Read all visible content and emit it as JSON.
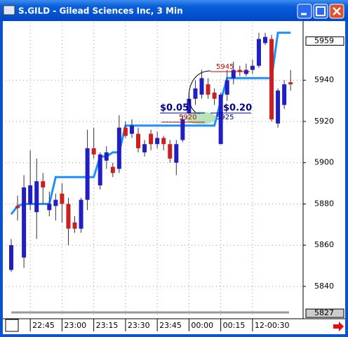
{
  "window_title": "S.GILD - Gilead Sciences Inc, 3 Min",
  "chart_data": {
    "type": "candlestick",
    "categories": [
      null,
      null,
      null,
      "22:45",
      null,
      null,
      null,
      null,
      "23:00",
      null,
      null,
      null,
      null,
      "23:15",
      null,
      null,
      null,
      null,
      "23:30",
      null,
      null,
      null,
      null,
      "23:45",
      null,
      null,
      null,
      null,
      "00:00",
      null,
      null,
      null,
      null,
      "00:15",
      null,
      null,
      null,
      null,
      "12-00:30",
      null,
      null,
      null,
      null,
      null,
      null
    ],
    "open": [
      5848,
      5879,
      5854,
      5880,
      5876,
      5891,
      5877,
      5879,
      5885,
      5880,
      5871,
      5868,
      5882,
      5907,
      5889,
      5901,
      5898,
      5897,
      5917,
      5914,
      5914,
      5905,
      5914,
      5909,
      5912,
      5909,
      5900,
      5911,
      5924,
      5931,
      5933,
      5938,
      5934,
      5909,
      5933,
      5941,
      5945,
      5943,
      5945,
      5947,
      5958,
      5960,
      5919,
      5928,
      5939
    ],
    "high": [
      5863,
      5884,
      5894,
      5906,
      5902,
      5895,
      5886,
      5885,
      5890,
      5883,
      5874,
      5883,
      5916,
      5917,
      5905,
      5908,
      5900,
      5923,
      5920,
      5921,
      5917,
      5911,
      5916,
      5915,
      5913,
      5911,
      5911,
      5923,
      5934,
      5940,
      5945,
      5941,
      5936,
      5934,
      5945,
      5949,
      5947,
      5948,
      5950,
      5963,
      5963,
      5962,
      5936,
      5940,
      5945
    ],
    "low": [
      5847,
      5872,
      5849,
      5877,
      5863,
      5880,
      5874,
      5872,
      5871,
      5860,
      5866,
      5866,
      5877,
      5902,
      5887,
      5897,
      5893,
      5895,
      5912,
      5912,
      5905,
      5903,
      5906,
      5907,
      5906,
      5900,
      5894,
      5910,
      5923,
      5928,
      5931,
      5931,
      5928,
      5909,
      5930,
      5938,
      5942,
      5942,
      5943,
      5946,
      5957,
      5920,
      5917,
      5926,
      5935
    ],
    "close": [
      5860,
      5878,
      5888,
      5889,
      5891,
      5888,
      5880,
      5882,
      5880,
      5868,
      5868,
      5882,
      5907,
      5904,
      5904,
      5905,
      5895,
      5917,
      5913,
      5918,
      5907,
      5909,
      5909,
      5912,
      5909,
      5902,
      5909,
      5921,
      5931,
      5936,
      5941,
      5933,
      5931,
      5933,
      5940,
      5945,
      5944,
      5945,
      5947,
      5960,
      5961,
      5921,
      5935,
      5938,
      5938
    ],
    "up_color": "#1f1fc4",
    "down_color": "#cc1f1f",
    "step_line": {
      "color": "#1e8fff",
      "values": [
        5875,
        5879,
        5880,
        5880,
        5880,
        5880,
        5880,
        5893,
        5893,
        5893,
        5893,
        5893,
        5893,
        5893,
        5903,
        5903,
        5905,
        5905,
        5918,
        5918,
        5918,
        5918,
        5918,
        5918,
        5918,
        5918,
        5918,
        5918,
        5918,
        5918,
        5918,
        5918,
        5918,
        5930,
        5941,
        5941,
        5941,
        5941,
        5941,
        5941,
        5941,
        5941,
        5963,
        5963,
        5963
      ]
    },
    "ylim": [
      5825,
      5968
    ],
    "yticks": [
      5940,
      5920,
      5900,
      5880,
      5860,
      5840
    ],
    "grid": true,
    "price_markers": [
      5959,
      5827
    ],
    "annotations": [
      "$0.05",
      "$0.20",
      "5945",
      "5920",
      "5925"
    ]
  }
}
